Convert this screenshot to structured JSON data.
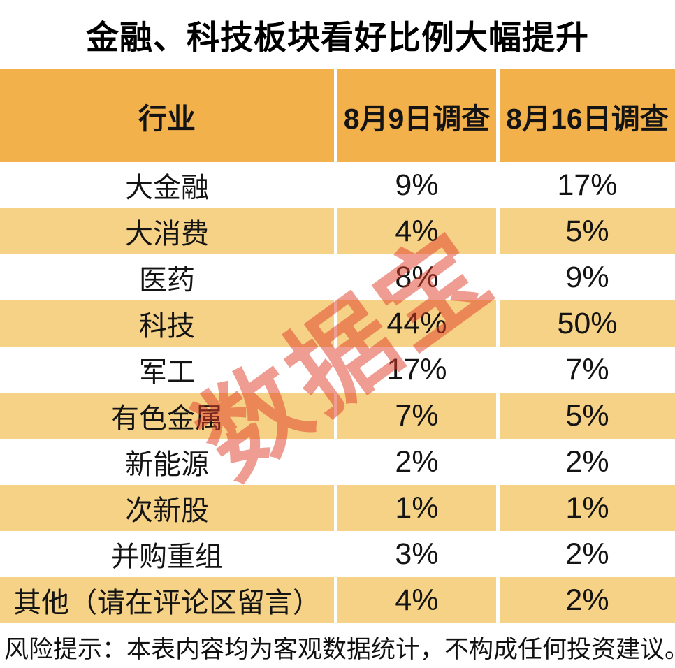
{
  "title": "金融、科技板块看好比例大幅提升",
  "table": {
    "headers": [
      "行业",
      "8月9日调查",
      "8月16日调查"
    ],
    "rows": [
      {
        "industry": "大金融",
        "aug9": "9%",
        "aug16": "17%"
      },
      {
        "industry": "大消费",
        "aug9": "4%",
        "aug16": "5%"
      },
      {
        "industry": "医药",
        "aug9": "8%",
        "aug16": "9%"
      },
      {
        "industry": "科技",
        "aug9": "44%",
        "aug16": "50%"
      },
      {
        "industry": "军工",
        "aug9": "17%",
        "aug16": "7%"
      },
      {
        "industry": "有色金属",
        "aug9": "7%",
        "aug16": "5%"
      },
      {
        "industry": "新能源",
        "aug9": "2%",
        "aug16": "2%"
      },
      {
        "industry": "次新股",
        "aug9": "1%",
        "aug16": "1%"
      },
      {
        "industry": "并购重组",
        "aug9": "3%",
        "aug16": "2%"
      },
      {
        "industry": "其他（请在评论区留言）",
        "aug9": "4%",
        "aug16": "2%"
      }
    ]
  },
  "watermark": {
    "text": "数据宝"
  },
  "footer": {
    "disclaimer": "风险提示：本表内容均为客观数据统计，不构成任何投资建议。"
  },
  "colors": {
    "header_bg": "#F2B14B",
    "row_alt_bg": "#F6D287",
    "row_bg": "#FFFFFF",
    "watermark_red": "#E03C26",
    "text": "#111111"
  },
  "chart_data": {
    "type": "table",
    "title": "金融、科技板块看好比例大幅提升",
    "columns": [
      "行业",
      "8月9日调查",
      "8月16日调查"
    ],
    "categories": [
      "大金融",
      "大消费",
      "医药",
      "科技",
      "军工",
      "有色金属",
      "新能源",
      "次新股",
      "并购重组",
      "其他（请在评论区留言）"
    ],
    "series": [
      {
        "name": "8月9日调查",
        "values": [
          9,
          4,
          8,
          44,
          17,
          7,
          2,
          1,
          3,
          4
        ]
      },
      {
        "name": "8月16日调查",
        "values": [
          17,
          5,
          9,
          50,
          7,
          5,
          2,
          1,
          2,
          2
        ]
      }
    ],
    "value_unit": "%",
    "footnote": "风险提示：本表内容均为客观数据统计，不构成任何投资建议。"
  }
}
